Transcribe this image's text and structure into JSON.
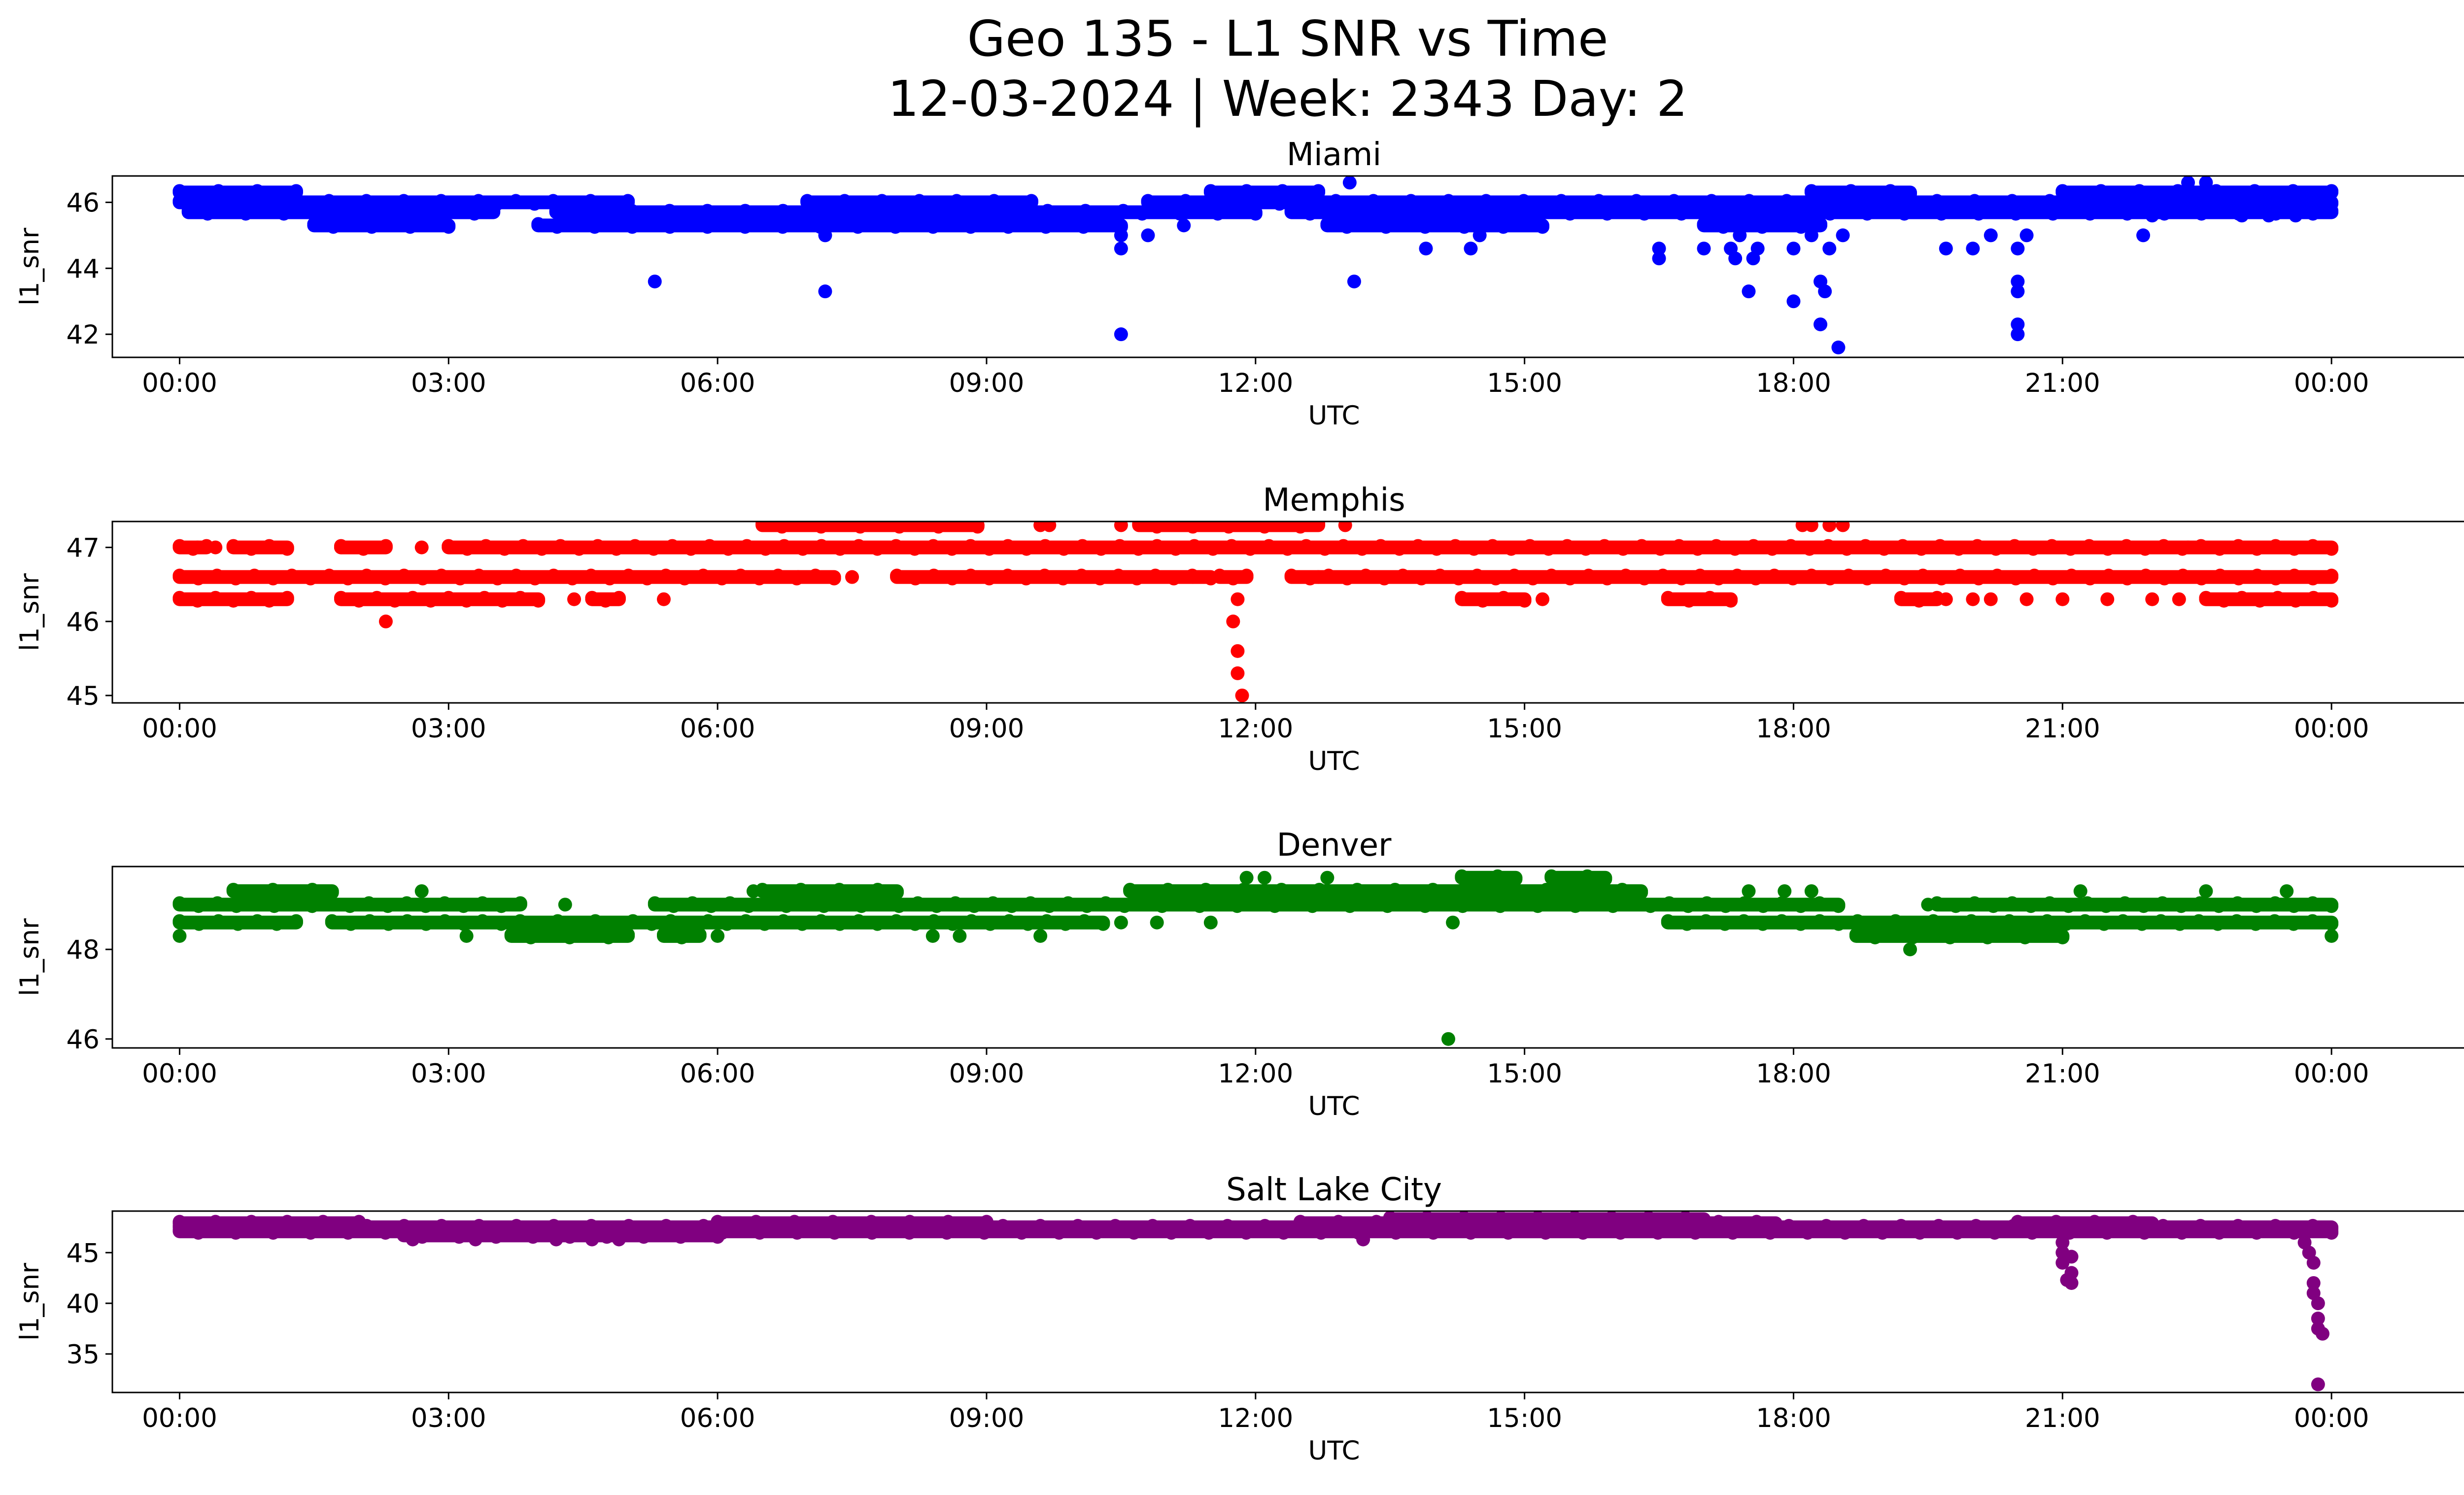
{
  "figure": {
    "title_line1": "Geo 135 - L1 SNR vs Time",
    "title_line2": "12-03-2024 | Week: 2343 Day: 2"
  },
  "chart_data": [
    {
      "type": "scatter",
      "title": "Miami",
      "xlabel": "UTC",
      "ylabel": "l1_snr",
      "color": "#0000ff",
      "xlim_hours": [
        -0.75,
        26.5
      ],
      "ylim": [
        41.3,
        46.8
      ],
      "xticks": [
        "00:00",
        "03:00",
        "06:00",
        "09:00",
        "12:00",
        "15:00",
        "18:00",
        "21:00",
        "00:00"
      ],
      "yticks": [
        42,
        44,
        46
      ],
      "bands": [
        {
          "y": 46.3,
          "ranges": [
            [
              0.0,
              1.3
            ],
            [
              11.5,
              12.7
            ],
            [
              18.2,
              19.3
            ],
            [
              21.0,
              24.0
            ]
          ]
        },
        {
          "y": 46.0,
          "ranges": [
            [
              0.0,
              5.0
            ],
            [
              7.0,
              9.5
            ],
            [
              10.8,
              24.0
            ]
          ]
        },
        {
          "y": 45.7,
          "ranges": [
            [
              0.1,
              3.5
            ],
            [
              4.2,
              12.0
            ],
            [
              12.4,
              24.0
            ]
          ]
        },
        {
          "y": 45.3,
          "ranges": [
            [
              1.5,
              3.0
            ],
            [
              4.0,
              10.5
            ],
            [
              12.8,
              15.2
            ],
            [
              17.0,
              18.3
            ]
          ]
        }
      ],
      "points": [
        [
          5.3,
          43.6
        ],
        [
          7.2,
          43.3
        ],
        [
          7.2,
          45.0
        ],
        [
          10.5,
          42.0
        ],
        [
          10.5,
          44.6
        ],
        [
          10.5,
          45.0
        ],
        [
          10.8,
          45.0
        ],
        [
          11.2,
          45.3
        ],
        [
          13.05,
          46.6
        ],
        [
          13.1,
          43.6
        ],
        [
          13.9,
          44.6
        ],
        [
          14.4,
          44.6
        ],
        [
          14.5,
          45.0
        ],
        [
          16.5,
          44.3
        ],
        [
          16.5,
          44.6
        ],
        [
          17.0,
          44.6
        ],
        [
          17.3,
          44.6
        ],
        [
          17.35,
          44.3
        ],
        [
          17.4,
          45.0
        ],
        [
          17.5,
          43.3
        ],
        [
          17.55,
          44.3
        ],
        [
          17.6,
          44.6
        ],
        [
          18.0,
          43.0
        ],
        [
          18.0,
          44.6
        ],
        [
          18.2,
          45.0
        ],
        [
          18.3,
          43.6
        ],
        [
          18.3,
          42.3
        ],
        [
          18.35,
          43.3
        ],
        [
          18.4,
          44.6
        ],
        [
          18.5,
          41.6
        ],
        [
          18.55,
          45.0
        ],
        [
          19.7,
          44.6
        ],
        [
          20.0,
          44.6
        ],
        [
          20.2,
          45.0
        ],
        [
          20.5,
          42.3
        ],
        [
          20.5,
          42.0
        ],
        [
          20.5,
          43.6
        ],
        [
          20.5,
          43.3
        ],
        [
          20.5,
          44.6
        ],
        [
          20.6,
          45.0
        ],
        [
          21.9,
          45.0
        ],
        [
          22.0,
          45.6
        ],
        [
          22.4,
          46.6
        ],
        [
          22.6,
          46.6
        ],
        [
          23.0,
          45.6
        ],
        [
          23.3,
          45.6
        ],
        [
          23.6,
          45.6
        ]
      ]
    },
    {
      "type": "scatter",
      "title": "Memphis",
      "xlabel": "UTC",
      "ylabel": "l1_snr",
      "color": "#ff0000",
      "xlim_hours": [
        -0.75,
        26.5
      ],
      "ylim": [
        44.9,
        47.35
      ],
      "xticks": [
        "00:00",
        "03:00",
        "06:00",
        "09:00",
        "12:00",
        "15:00",
        "18:00",
        "21:00",
        "00:00"
      ],
      "yticks": [
        45,
        46,
        47
      ],
      "bands": [
        {
          "y": 47.3,
          "ranges": [
            [
              6.5,
              8.9
            ],
            [
              10.7,
              12.7
            ]
          ]
        },
        {
          "y": 47.0,
          "ranges": [
            [
              0.0,
              0.3
            ],
            [
              0.6,
              1.2
            ],
            [
              1.8,
              2.3
            ],
            [
              3.0,
              24.0
            ]
          ]
        },
        {
          "y": 46.6,
          "ranges": [
            [
              0.0,
              7.3
            ],
            [
              8.0,
              11.5
            ],
            [
              11.6,
              11.9
            ],
            [
              12.4,
              24.0
            ]
          ]
        },
        {
          "y": 46.3,
          "ranges": [
            [
              0.0,
              1.2
            ],
            [
              1.8,
              4.0
            ],
            [
              4.6,
              4.9
            ],
            [
              14.3,
              15.0
            ],
            [
              16.6,
              17.3
            ],
            [
              19.2,
              19.6
            ],
            [
              22.6,
              24.0
            ]
          ]
        }
      ],
      "points": [
        [
          0.2,
          47.0
        ],
        [
          0.4,
          47.0
        ],
        [
          1.8,
          47.0
        ],
        [
          2.3,
          46.0
        ],
        [
          2.7,
          47.0
        ],
        [
          4.4,
          46.3
        ],
        [
          5.4,
          46.3
        ],
        [
          6.9,
          46.6
        ],
        [
          7.5,
          46.6
        ],
        [
          8.9,
          47.3
        ],
        [
          9.6,
          47.3
        ],
        [
          9.7,
          47.3
        ],
        [
          10.5,
          47.3
        ],
        [
          11.3,
          46.6
        ],
        [
          11.75,
          46.0
        ],
        [
          11.8,
          46.3
        ],
        [
          11.8,
          45.6
        ],
        [
          11.8,
          45.3
        ],
        [
          11.85,
          45.0
        ],
        [
          12.7,
          46.6
        ],
        [
          13.0,
          47.3
        ],
        [
          15.2,
          46.3
        ],
        [
          17.3,
          46.3
        ],
        [
          18.1,
          47.3
        ],
        [
          18.2,
          47.3
        ],
        [
          18.4,
          47.3
        ],
        [
          18.55,
          47.3
        ],
        [
          19.7,
          46.3
        ],
        [
          20.0,
          46.3
        ],
        [
          20.2,
          46.3
        ],
        [
          20.6,
          46.3
        ],
        [
          21.0,
          46.3
        ],
        [
          21.5,
          46.3
        ],
        [
          22.0,
          46.3
        ],
        [
          22.3,
          46.3
        ],
        [
          22.4,
          47.0
        ]
      ]
    },
    {
      "type": "scatter",
      "title": "Denver",
      "xlabel": "UTC",
      "ylabel": "l1_snr",
      "color": "#008000",
      "xlim_hours": [
        -0.75,
        26.5
      ],
      "ylim": [
        45.8,
        49.85
      ],
      "xticks": [
        "00:00",
        "03:00",
        "06:00",
        "09:00",
        "12:00",
        "15:00",
        "18:00",
        "21:00",
        "00:00"
      ],
      "yticks": [
        46,
        48
      ],
      "bands": [
        {
          "y": 49.6,
          "ranges": [
            [
              14.3,
              14.9
            ],
            [
              15.3,
              15.9
            ]
          ]
        },
        {
          "y": 49.3,
          "ranges": [
            [
              0.6,
              1.7
            ],
            [
              6.5,
              8.0
            ],
            [
              10.6,
              16.3
            ]
          ]
        },
        {
          "y": 49.0,
          "ranges": [
            [
              0.0,
              3.8
            ],
            [
              5.3,
              18.5
            ],
            [
              19.6,
              24.0
            ]
          ]
        },
        {
          "y": 48.6,
          "ranges": [
            [
              0.0,
              1.3
            ],
            [
              1.7,
              10.3
            ],
            [
              16.6,
              24.0
            ]
          ]
        },
        {
          "y": 48.3,
          "ranges": [
            [
              3.7,
              5.0
            ],
            [
              5.4,
              5.8
            ],
            [
              18.7,
              21.0
            ]
          ]
        }
      ],
      "points": [
        [
          0.0,
          48.3
        ],
        [
          2.7,
          49.3
        ],
        [
          3.2,
          48.3
        ],
        [
          4.3,
          49.0
        ],
        [
          6.0,
          48.3
        ],
        [
          6.4,
          49.3
        ],
        [
          8.4,
          48.3
        ],
        [
          8.7,
          48.3
        ],
        [
          9.6,
          48.3
        ],
        [
          10.5,
          48.6
        ],
        [
          10.9,
          48.6
        ],
        [
          11.5,
          48.6
        ],
        [
          11.9,
          49.6
        ],
        [
          12.1,
          49.6
        ],
        [
          12.8,
          49.6
        ],
        [
          14.15,
          46.0
        ],
        [
          14.2,
          48.6
        ],
        [
          17.5,
          49.3
        ],
        [
          17.9,
          49.3
        ],
        [
          18.2,
          49.3
        ],
        [
          19.3,
          48.0
        ],
        [
          19.5,
          49.0
        ],
        [
          21.0,
          48.3
        ],
        [
          21.2,
          49.3
        ],
        [
          22.6,
          49.3
        ],
        [
          23.5,
          49.3
        ],
        [
          24.0,
          48.3
        ]
      ]
    },
    {
      "type": "scatter",
      "title": "Salt Lake City",
      "xlabel": "UTC",
      "ylabel": "l1_snr",
      "color": "#800080",
      "xlim_hours": [
        -0.75,
        26.5
      ],
      "ylim": [
        31.2,
        49.1
      ],
      "xticks": [
        "00:00",
        "03:00",
        "06:00",
        "09:00",
        "12:00",
        "15:00",
        "18:00",
        "21:00",
        "00:00"
      ],
      "yticks": [
        35,
        40,
        45
      ],
      "bands": [
        {
          "y": 48.3,
          "ranges": [
            [
              13.5,
              17.0
            ]
          ]
        },
        {
          "y": 47.9,
          "ranges": [
            [
              0.0,
              2.0
            ],
            [
              6.0,
              9.0
            ],
            [
              12.5,
              17.8
            ],
            [
              20.5,
              22.0
            ]
          ]
        },
        {
          "y": 47.5,
          "ranges": [
            [
              0.0,
              24.0
            ]
          ]
        },
        {
          "y": 47.1,
          "ranges": [
            [
              0.0,
              24.0
            ]
          ]
        },
        {
          "y": 46.7,
          "ranges": [
            [
              2.5,
              6.0
            ]
          ]
        }
      ],
      "points": [
        [
          2.6,
          46.3
        ],
        [
          3.3,
          46.3
        ],
        [
          4.2,
          46.3
        ],
        [
          4.6,
          46.3
        ],
        [
          4.9,
          46.3
        ],
        [
          13.2,
          46.3
        ],
        [
          21.0,
          46.0
        ],
        [
          21.0,
          45.0
        ],
        [
          21.0,
          44.0
        ],
        [
          21.05,
          42.3
        ],
        [
          21.1,
          42.0
        ],
        [
          21.1,
          43.0
        ],
        [
          21.1,
          44.6
        ],
        [
          23.7,
          46.0
        ],
        [
          23.75,
          45.0
        ],
        [
          23.8,
          44.0
        ],
        [
          23.8,
          42.0
        ],
        [
          23.8,
          41.0
        ],
        [
          23.85,
          40.0
        ],
        [
          23.85,
          38.5
        ],
        [
          23.85,
          37.5
        ],
        [
          23.9,
          37.0
        ],
        [
          23.85,
          32.0
        ]
      ]
    }
  ]
}
